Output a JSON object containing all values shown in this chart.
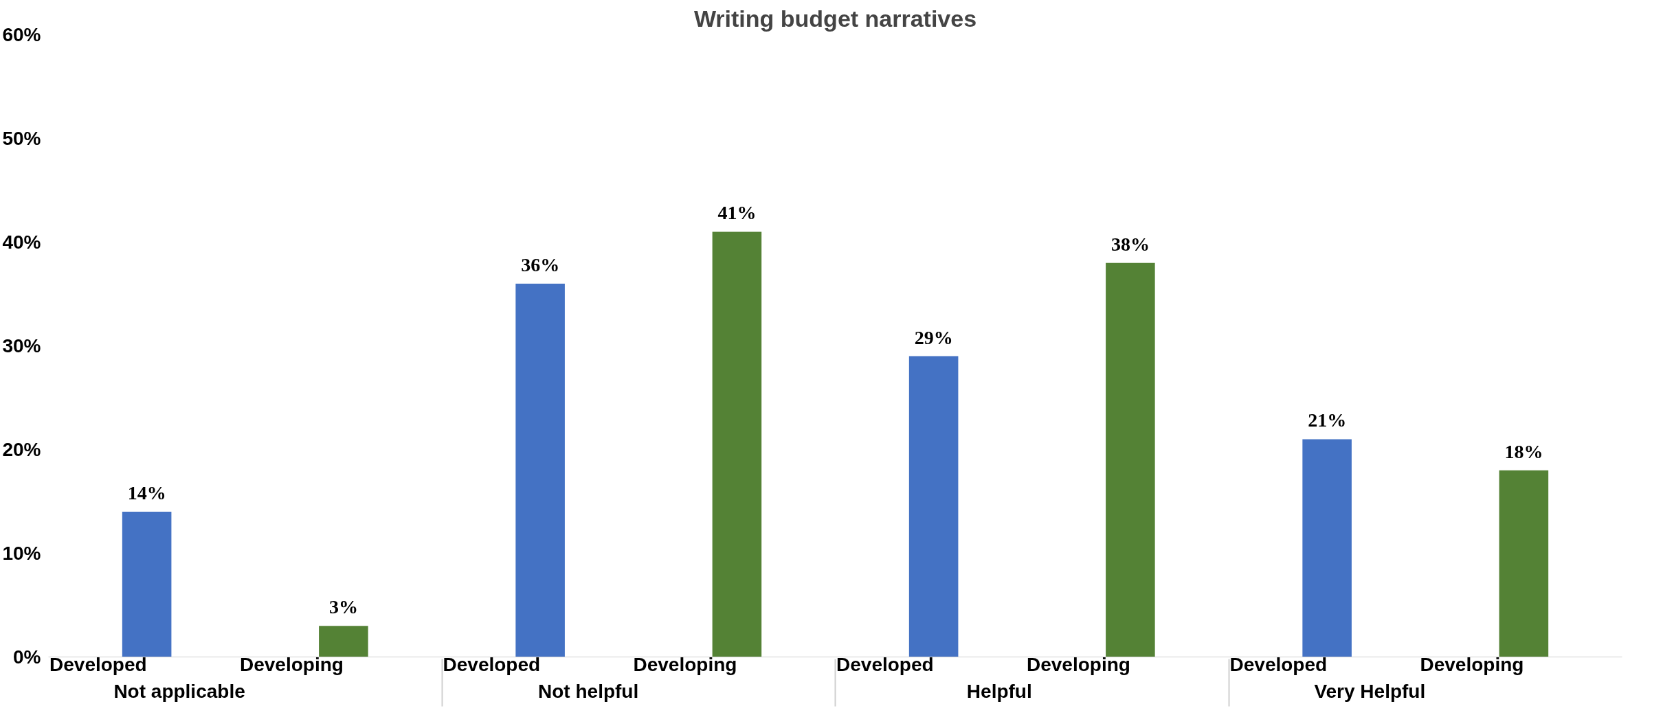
{
  "chart_data": {
    "type": "bar",
    "title": "Writing budget narratives",
    "categories": [
      "Not applicable",
      "Not helpful",
      "Helpful",
      "Very Helpful"
    ],
    "series": [
      {
        "name": "Developed",
        "color": "#4472c4",
        "values": [
          14,
          36,
          29,
          21
        ],
        "value_labels": [
          "14%",
          "36%",
          "29%",
          "21%"
        ]
      },
      {
        "name": "Developing",
        "color": "#548235",
        "values": [
          3,
          41,
          38,
          18
        ],
        "value_labels": [
          "3%",
          "41%",
          "38%",
          "18%"
        ]
      }
    ],
    "ylim": [
      0,
      60
    ],
    "yticks": [
      {
        "value": 0,
        "label": "0%"
      },
      {
        "value": 10,
        "label": "10%"
      },
      {
        "value": 20,
        "label": "20%"
      },
      {
        "value": 30,
        "label": "30%"
      },
      {
        "value": 40,
        "label": "40%"
      },
      {
        "value": 50,
        "label": "50%"
      },
      {
        "value": 60,
        "label": "60%"
      }
    ],
    "grid": false,
    "legend": false
  }
}
